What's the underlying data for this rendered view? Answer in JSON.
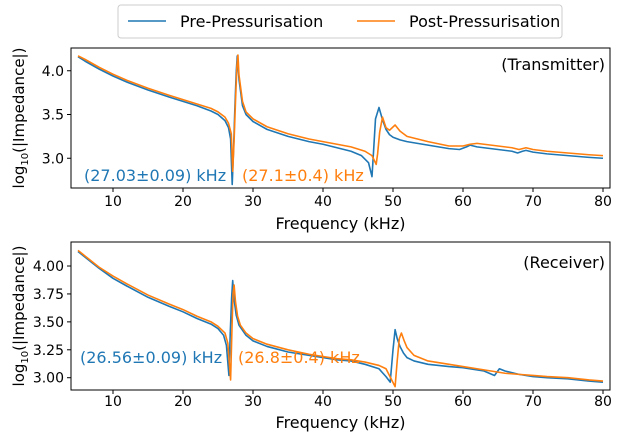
{
  "legend": {
    "placement": "top-center",
    "entries": [
      {
        "label": "Pre-Pressurisation",
        "color": "#1f77b4"
      },
      {
        "label": "Post-Pressurisation",
        "color": "#ff7f0e"
      }
    ]
  },
  "chart_data": [
    {
      "type": "line",
      "title": "(Transmitter)",
      "xlabel": "Frequency (kHz)",
      "ylabel": "log10(|Impedance|)",
      "xlim": [
        4,
        81
      ],
      "ylim": [
        2.66,
        4.26
      ],
      "xticks": [
        10,
        20,
        30,
        40,
        50,
        60,
        70,
        80
      ],
      "yticks": [
        3.0,
        3.5,
        4.0
      ],
      "ytick_labels": [
        "3.0",
        "3.5",
        "4.0"
      ],
      "grid": false,
      "annotations": [
        {
          "text": "(27.03±0.09) kHz",
          "series": "Pre-Pressurisation",
          "color": "#1f77b4"
        },
        {
          "text": "(27.1±0.4) kHz",
          "series": "Post-Pressurisation",
          "color": "#ff7f0e"
        }
      ],
      "series": [
        {
          "name": "Pre-Pressurisation",
          "color": "#1f77b4",
          "x": [
            5,
            6,
            8,
            10,
            12,
            15,
            18,
            20,
            22,
            24,
            25,
            26,
            26.5,
            26.8,
            27.03,
            27.2,
            27.4,
            27.6,
            27.75,
            28,
            28.5,
            29,
            30,
            32,
            35,
            38,
            40,
            42,
            44,
            45.5,
            46.5,
            47,
            47.2,
            47.5,
            48,
            48.5,
            49,
            49.5,
            50,
            51,
            52,
            55,
            58,
            59.5,
            60.5,
            61,
            62,
            63,
            65,
            67,
            67.8,
            68.5,
            69,
            70,
            72,
            75,
            78,
            80
          ],
          "y": [
            4.16,
            4.11,
            4.02,
            3.94,
            3.87,
            3.78,
            3.7,
            3.65,
            3.6,
            3.54,
            3.5,
            3.43,
            3.35,
            3.22,
            2.7,
            3.05,
            3.55,
            3.98,
            4.17,
            3.9,
            3.6,
            3.5,
            3.42,
            3.33,
            3.25,
            3.19,
            3.16,
            3.12,
            3.08,
            3.03,
            2.95,
            2.79,
            3.05,
            3.45,
            3.58,
            3.44,
            3.33,
            3.27,
            3.24,
            3.21,
            3.19,
            3.15,
            3.11,
            3.1,
            3.13,
            3.15,
            3.13,
            3.12,
            3.1,
            3.08,
            3.06,
            3.08,
            3.09,
            3.07,
            3.05,
            3.03,
            3.01,
            3.0
          ]
        },
        {
          "name": "Post-Pressurisation",
          "color": "#ff7f0e",
          "x": [
            5,
            6,
            8,
            10,
            12,
            15,
            18,
            20,
            22,
            24,
            25,
            26,
            26.5,
            26.9,
            27.1,
            27.3,
            27.5,
            27.7,
            27.85,
            28,
            28.5,
            29,
            30,
            32,
            35,
            38,
            40,
            42,
            44,
            46,
            47,
            47.6,
            47.8,
            48.1,
            48.5,
            49,
            49.5,
            50.3,
            51,
            52,
            55,
            58,
            60,
            61,
            62,
            63,
            65,
            67,
            68,
            68.5,
            69,
            70,
            72,
            75,
            78,
            80
          ],
          "y": [
            4.17,
            4.13,
            4.04,
            3.96,
            3.89,
            3.8,
            3.72,
            3.67,
            3.62,
            3.57,
            3.53,
            3.47,
            3.4,
            3.28,
            2.85,
            3.2,
            3.65,
            4.05,
            4.18,
            3.95,
            3.65,
            3.53,
            3.45,
            3.36,
            3.28,
            3.22,
            3.19,
            3.16,
            3.13,
            3.08,
            3.03,
            2.93,
            3.05,
            3.3,
            3.47,
            3.35,
            3.32,
            3.38,
            3.31,
            3.25,
            3.19,
            3.14,
            3.14,
            3.16,
            3.17,
            3.16,
            3.14,
            3.12,
            3.1,
            3.11,
            3.12,
            3.1,
            3.08,
            3.06,
            3.04,
            3.03
          ]
        }
      ]
    },
    {
      "type": "line",
      "title": "(Receiver)",
      "xlabel": "Frequency (kHz)",
      "ylabel": "log10(|Impedance|)",
      "xlim": [
        4,
        81
      ],
      "ylim": [
        2.89,
        4.215
      ],
      "xticks": [
        10,
        20,
        30,
        40,
        50,
        60,
        70,
        80
      ],
      "yticks": [
        3.0,
        3.25,
        3.5,
        3.75,
        4.0
      ],
      "ytick_labels": [
        "3.00",
        "3.25",
        "3.50",
        "3.75",
        "4.00"
      ],
      "grid": false,
      "annotations": [
        {
          "text": "(26.56±0.09) kHz",
          "series": "Pre-Pressurisation",
          "color": "#1f77b4"
        },
        {
          "text": "(26.8±0.4) kHz",
          "series": "Post-Pressurisation",
          "color": "#ff7f0e"
        }
      ],
      "series": [
        {
          "name": "Pre-Pressurisation",
          "color": "#1f77b4",
          "x": [
            5,
            6,
            8,
            10,
            12,
            15,
            18,
            20,
            22,
            24,
            25,
            25.8,
            26.2,
            26.56,
            26.75,
            26.95,
            27.1,
            27.3,
            27.6,
            28,
            29,
            30,
            32,
            35,
            38,
            40,
            42,
            44,
            46,
            48,
            49,
            49.6,
            50,
            50.3,
            50.6,
            51,
            51.5,
            52,
            53,
            55,
            58,
            60,
            63,
            64.5,
            65.2,
            65.6,
            66,
            68,
            70,
            72,
            75,
            78,
            80
          ],
          "y": [
            4.13,
            4.08,
            3.98,
            3.89,
            3.82,
            3.72,
            3.64,
            3.59,
            3.53,
            3.48,
            3.44,
            3.38,
            3.29,
            3.02,
            3.4,
            3.72,
            3.87,
            3.7,
            3.56,
            3.47,
            3.38,
            3.33,
            3.28,
            3.23,
            3.2,
            3.18,
            3.16,
            3.15,
            3.12,
            3.08,
            3.01,
            2.96,
            3.25,
            3.43,
            3.35,
            3.28,
            3.22,
            3.18,
            3.15,
            3.12,
            3.1,
            3.09,
            3.06,
            3.02,
            3.08,
            3.07,
            3.06,
            3.03,
            3.01,
            3.0,
            2.99,
            2.97,
            2.96
          ]
        },
        {
          "name": "Post-Pressurisation",
          "color": "#ff7f0e",
          "x": [
            5,
            6,
            8,
            10,
            12,
            15,
            18,
            20,
            22,
            24,
            25,
            26,
            26.4,
            26.8,
            27,
            27.15,
            27.3,
            27.5,
            27.8,
            28.2,
            29,
            30,
            32,
            35,
            38,
            40,
            42,
            44,
            46,
            48,
            49,
            50.3,
            50.6,
            50.9,
            51.2,
            51.6,
            52,
            53,
            55,
            58,
            60,
            63,
            65,
            66,
            68,
            70,
            72,
            75,
            78,
            80
          ],
          "y": [
            4.14,
            4.09,
            3.99,
            3.91,
            3.84,
            3.74,
            3.66,
            3.61,
            3.55,
            3.5,
            3.46,
            3.4,
            3.31,
            2.98,
            3.45,
            3.75,
            3.83,
            3.68,
            3.55,
            3.47,
            3.4,
            3.35,
            3.3,
            3.25,
            3.21,
            3.19,
            3.17,
            3.16,
            3.14,
            3.11,
            3.08,
            2.92,
            3.15,
            3.35,
            3.4,
            3.33,
            3.27,
            3.2,
            3.15,
            3.12,
            3.1,
            3.07,
            3.05,
            3.04,
            3.03,
            3.02,
            3.01,
            3.0,
            2.98,
            2.97
          ]
        }
      ]
    }
  ]
}
